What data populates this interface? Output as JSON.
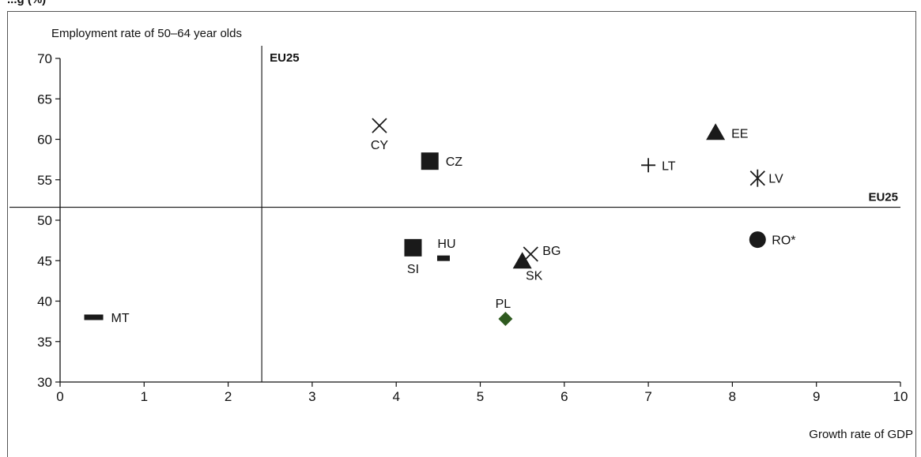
{
  "chart_data": {
    "type": "scatter",
    "clipped_heading": "...g (%)",
    "ylabel": "Employment rate of 50–64 year olds",
    "xlabel": "Growth rate of GDP",
    "xlim": [
      0,
      10
    ],
    "ylim": [
      30,
      70
    ],
    "x_ticks": [
      "0",
      "1",
      "2",
      "3",
      "4",
      "5",
      "6",
      "7",
      "8",
      "9",
      "10"
    ],
    "y_ticks": [
      "30",
      "35",
      "40",
      "45",
      "50",
      "55",
      "60",
      "65",
      "70"
    ],
    "reference_lines": {
      "vertical": {
        "x": 2.4,
        "label": "EU25"
      },
      "horizontal": {
        "y": 51.6,
        "label": "EU25"
      }
    },
    "points": [
      {
        "label": "MT",
        "x": 0.4,
        "y": 38.0,
        "marker": "dash"
      },
      {
        "label": "CY",
        "x": 3.8,
        "y": 61.7,
        "marker": "x"
      },
      {
        "label": "CZ",
        "x": 4.4,
        "y": 57.3,
        "marker": "square"
      },
      {
        "label": "SI",
        "x": 4.2,
        "y": 46.6,
        "marker": "square"
      },
      {
        "label": "HU",
        "x": 4.6,
        "y": 45.3,
        "marker": "dash"
      },
      {
        "label": "PL",
        "x": 5.3,
        "y": 37.8,
        "marker": "diamond",
        "color": "#2e5a1f"
      },
      {
        "label": "SK",
        "x": 5.5,
        "y": 44.9,
        "marker": "triangle"
      },
      {
        "label": "BG",
        "x": 5.6,
        "y": 45.8,
        "marker": "x"
      },
      {
        "label": "LT",
        "x": 7.0,
        "y": 56.8,
        "marker": "plus"
      },
      {
        "label": "EE",
        "x": 7.8,
        "y": 60.8,
        "marker": "triangle"
      },
      {
        "label": "LV",
        "x": 8.3,
        "y": 55.2,
        "marker": "asterisk"
      },
      {
        "label": "RO*",
        "x": 8.3,
        "y": 47.6,
        "marker": "circle"
      }
    ]
  }
}
